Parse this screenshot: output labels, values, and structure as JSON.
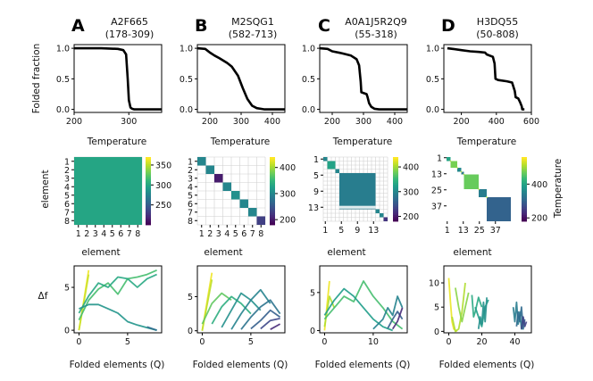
{
  "colors": {
    "viridis": [
      "#440154",
      "#482878",
      "#3e4989",
      "#31688e",
      "#26828e",
      "#1f9e89",
      "#35b779",
      "#6ece58",
      "#b5de2b",
      "#fde725"
    ],
    "curve": "#000000",
    "grid": "#d0d0d0"
  },
  "chart_data": [
    {
      "type": "line",
      "letter": "A",
      "title": "A2F665",
      "subtitle": "(178-309)",
      "xlabel": "Temperature",
      "ylabel": "Folded fraction",
      "xlim": [
        200,
        360
      ],
      "ylim": [
        0,
        1
      ],
      "xticks": [
        200,
        300
      ],
      "yticks": [
        0.0,
        0.5,
        1.0
      ],
      "ytick_labels": [
        "0.0",
        "0.5",
        "1.0"
      ],
      "series": [
        {
          "name": "folded fraction",
          "x": [
            200,
            250,
            280,
            290,
            295,
            298,
            300,
            303,
            306,
            310,
            330,
            360
          ],
          "y": [
            1.0,
            1.0,
            0.99,
            0.97,
            0.9,
            0.5,
            0.15,
            0.03,
            0.01,
            0.0,
            0.0,
            0.0
          ]
        }
      ]
    },
    {
      "type": "line",
      "letter": "B",
      "title": "M2SQG1",
      "subtitle": "(582-713)",
      "xlabel": "Temperature",
      "ylabel": "",
      "xlim": [
        160,
        440
      ],
      "ylim": [
        0,
        1
      ],
      "xticks": [
        200,
        300,
        400
      ],
      "yticks": [
        0.0,
        0.5,
        1.0
      ],
      "ytick_labels": [
        "0.0",
        "0.5",
        "1.0"
      ],
      "series": [
        {
          "name": "folded fraction",
          "x": [
            160,
            185,
            200,
            215,
            230,
            255,
            270,
            290,
            305,
            320,
            335,
            350,
            375,
            440
          ],
          "y": [
            1.0,
            0.99,
            0.93,
            0.88,
            0.84,
            0.76,
            0.7,
            0.55,
            0.35,
            0.17,
            0.06,
            0.02,
            0.0,
            0.0
          ]
        }
      ]
    },
    {
      "type": "line",
      "letter": "C",
      "title": "A0A1J5R2Q9",
      "subtitle": "(55-318)",
      "xlabel": "Temperature",
      "ylabel": "",
      "xlim": [
        160,
        440
      ],
      "ylim": [
        0,
        1
      ],
      "xticks": [
        200,
        300,
        400
      ],
      "yticks": [
        0.0,
        0.5,
        1.0
      ],
      "ytick_labels": [
        "0.0",
        "0.5",
        "1.0"
      ],
      "series": [
        {
          "name": "folded fraction",
          "x": [
            160,
            185,
            200,
            230,
            260,
            278,
            286,
            291,
            293,
            310,
            313,
            318,
            325,
            335,
            350,
            440
          ],
          "y": [
            1.0,
            0.99,
            0.95,
            0.92,
            0.88,
            0.82,
            0.72,
            0.45,
            0.28,
            0.25,
            0.2,
            0.1,
            0.04,
            0.01,
            0.0,
            0.0
          ]
        }
      ]
    },
    {
      "type": "line",
      "letter": "D",
      "title": "H3DQ55",
      "subtitle": "(50-808)",
      "xlabel": "Temperature",
      "ylabel": "",
      "xlim": [
        100,
        600
      ],
      "ylim": [
        0,
        1
      ],
      "xticks": [
        200,
        400,
        600
      ],
      "yticks": [
        0.0,
        0.5,
        1.0
      ],
      "ytick_labels": [
        "0.0",
        "0.5",
        "1.0"
      ],
      "series": [
        {
          "name": "folded fraction",
          "x": [
            120,
            150,
            200,
            250,
            300,
            335,
            345,
            380,
            390,
            395,
            410,
            460,
            490,
            505,
            510,
            525,
            535,
            545,
            548,
            560
          ],
          "y": [
            1.0,
            0.99,
            0.97,
            0.95,
            0.94,
            0.93,
            0.9,
            0.86,
            0.75,
            0.5,
            0.48,
            0.46,
            0.44,
            0.3,
            0.2,
            0.18,
            0.12,
            0.05,
            0.0,
            0.0
          ]
        }
      ]
    },
    {
      "type": "heatmap",
      "xlabel": "element",
      "ylabel": "element",
      "n": 8,
      "tick_labels": [
        "1",
        "2",
        "3",
        "4",
        "5",
        "6",
        "7",
        "8"
      ],
      "colorbar": {
        "range": [
          200,
          370
        ],
        "ticks": [
          250,
          300,
          350
        ],
        "label": ""
      },
      "blocks": [
        {
          "from": 1,
          "to": 8,
          "value": 300
        }
      ]
    },
    {
      "type": "heatmap",
      "xlabel": "element",
      "ylabel": "",
      "n": 8,
      "tick_labels": [
        "1",
        "2",
        "3",
        "4",
        "5",
        "6",
        "7",
        "8"
      ],
      "colorbar": {
        "range": [
          180,
          440
        ],
        "ticks": [
          200,
          300,
          400
        ],
        "label": ""
      },
      "blocks": [
        {
          "from": 1,
          "to": 1,
          "value": 300
        },
        {
          "from": 2,
          "to": 2,
          "value": 300
        },
        {
          "from": 3,
          "to": 3,
          "value": 200
        },
        {
          "from": 4,
          "to": 4,
          "value": 300
        },
        {
          "from": 5,
          "to": 5,
          "value": 310
        },
        {
          "from": 6,
          "to": 6,
          "value": 300
        },
        {
          "from": 7,
          "to": 7,
          "value": 300
        },
        {
          "from": 8,
          "to": 8,
          "value": 230
        }
      ]
    },
    {
      "type": "heatmap",
      "xlabel": "element",
      "ylabel": "",
      "n": 16,
      "tick_labels": [
        "1",
        "5",
        "9",
        "13"
      ],
      "tick_positions": [
        1,
        5,
        9,
        13
      ],
      "colorbar": {
        "range": [
          180,
          440
        ],
        "ticks": [
          200,
          300,
          400
        ],
        "label": ""
      },
      "blocks": [
        {
          "from": 1,
          "to": 1,
          "value": 300
        },
        {
          "from": 2,
          "to": 3,
          "value": 330
        },
        {
          "from": 4,
          "to": 4,
          "value": 300
        },
        {
          "from": 5,
          "to": 13,
          "value": 290
        },
        {
          "from": 14,
          "to": 14,
          "value": 300
        },
        {
          "from": 15,
          "to": 15,
          "value": 300
        },
        {
          "from": 16,
          "to": 16,
          "value": 220
        }
      ]
    },
    {
      "type": "heatmap",
      "xlabel": "element",
      "ylabel": "",
      "n": 48,
      "tick_labels": [
        "1",
        "13",
        "25",
        "37"
      ],
      "tick_positions": [
        1,
        13,
        25,
        37
      ],
      "colorbar": {
        "range": [
          180,
          560
        ],
        "ticks": [
          200,
          400
        ],
        "label": "Temperature"
      },
      "blocks": [
        {
          "from": 1,
          "to": 3,
          "value": 400
        },
        {
          "from": 4,
          "to": 8,
          "value": 480
        },
        {
          "from": 9,
          "to": 11,
          "value": 360
        },
        {
          "from": 12,
          "to": 13,
          "value": 330
        },
        {
          "from": 14,
          "to": 24,
          "value": 470
        },
        {
          "from": 25,
          "to": 30,
          "value": 340
        },
        {
          "from": 31,
          "to": 48,
          "value": 300
        }
      ]
    },
    {
      "type": "line",
      "xlabel": "Folded elements (Q)",
      "ylabel": "Δf",
      "xlim": [
        -0.5,
        8.5
      ],
      "ylim": [
        -0.3,
        7.5
      ],
      "xticks": [
        0,
        5
      ],
      "yticks": [
        0,
        5
      ],
      "series": [
        {
          "t": 0.98,
          "x": [
            0,
            0.5,
            1
          ],
          "y": [
            0,
            3.5,
            7
          ]
        },
        {
          "t": 0.92,
          "x": [
            0,
            0.5,
            1
          ],
          "y": [
            0,
            3.2,
            6.5
          ]
        },
        {
          "t": 0.7,
          "x": [
            0,
            1,
            2,
            3,
            4,
            5,
            6,
            7,
            8
          ],
          "y": [
            1.2,
            3.5,
            4.8,
            5.5,
            4.2,
            6.0,
            6.2,
            6.5,
            7.0
          ]
        },
        {
          "t": 0.6,
          "x": [
            0,
            1,
            2,
            3,
            4,
            5,
            6,
            7,
            8
          ],
          "y": [
            2.0,
            4.0,
            5.5,
            5.0,
            6.2,
            6.0,
            5.0,
            6.0,
            6.5
          ]
        },
        {
          "t": 0.52,
          "x": [
            0,
            1,
            2,
            3,
            4,
            5,
            6,
            7,
            8
          ],
          "y": [
            2.5,
            3.0,
            3.0,
            2.5,
            2.0,
            1.0,
            0.6,
            0.3,
            0.0
          ]
        },
        {
          "t": 0.35,
          "x": [
            7,
            8
          ],
          "y": [
            0.4,
            0
          ]
        }
      ]
    },
    {
      "type": "line",
      "xlabel": "Folded elements (Q)",
      "ylabel": "",
      "xlim": [
        -0.5,
        8.5
      ],
      "ylim": [
        -0.3,
        9.5
      ],
      "xticks": [
        0,
        5
      ],
      "yticks": [
        0,
        5
      ],
      "series": [
        {
          "t": 0.98,
          "x": [
            0,
            1
          ],
          "y": [
            0,
            8.5
          ]
        },
        {
          "t": 0.9,
          "x": [
            0,
            1
          ],
          "y": [
            0,
            7.5
          ]
        },
        {
          "t": 0.75,
          "x": [
            0,
            1,
            2,
            3
          ],
          "y": [
            1.0,
            4.0,
            5.5,
            4.5
          ]
        },
        {
          "t": 0.62,
          "x": [
            1,
            2,
            3,
            4,
            5
          ],
          "y": [
            1.0,
            3.5,
            5.0,
            4.0,
            2.5
          ]
        },
        {
          "t": 0.5,
          "x": [
            2,
            3,
            4,
            5,
            6
          ],
          "y": [
            0.5,
            3.0,
            5.5,
            4.5,
            3.0
          ]
        },
        {
          "t": 0.45,
          "x": [
            3,
            4,
            5,
            6,
            7
          ],
          "y": [
            0.2,
            2.5,
            4.5,
            6.0,
            4.0
          ]
        },
        {
          "t": 0.38,
          "x": [
            4,
            5,
            6,
            7,
            8
          ],
          "y": [
            0.2,
            2.0,
            3.5,
            4.5,
            2.5
          ]
        },
        {
          "t": 0.3,
          "x": [
            5,
            6,
            7,
            8
          ],
          "y": [
            0.3,
            1.5,
            3.0,
            2.0
          ]
        },
        {
          "t": 0.22,
          "x": [
            6,
            7,
            8
          ],
          "y": [
            0.3,
            1.5,
            1.8
          ]
        },
        {
          "t": 0.12,
          "x": [
            7,
            8
          ],
          "y": [
            0.2,
            1.0
          ]
        }
      ]
    },
    {
      "type": "line",
      "xlabel": "Folded elements (Q)",
      "ylabel": "",
      "xlim": [
        -1,
        17
      ],
      "ylim": [
        -0.3,
        8.5
      ],
      "xticks": [
        0,
        10
      ],
      "yticks": [
        0,
        5
      ],
      "series": [
        {
          "t": 0.98,
          "x": [
            0,
            1
          ],
          "y": [
            0,
            6.5
          ]
        },
        {
          "t": 0.88,
          "x": [
            0,
            1,
            2
          ],
          "y": [
            0.5,
            4.5,
            3.0
          ]
        },
        {
          "t": 0.7,
          "x": [
            0,
            2,
            4,
            6,
            8,
            10,
            12,
            14,
            16
          ],
          "y": [
            1.5,
            3.0,
            4.5,
            3.8,
            6.5,
            4.5,
            3.0,
            1.2,
            0.2
          ]
        },
        {
          "t": 0.55,
          "x": [
            0,
            2,
            4,
            6,
            8,
            10,
            12,
            14
          ],
          "y": [
            2.0,
            4.0,
            5.5,
            4.5,
            3.0,
            1.5,
            0.5,
            0.0
          ]
        },
        {
          "t": 0.45,
          "x": [
            10,
            12,
            13,
            14,
            15,
            16
          ],
          "y": [
            0.2,
            1.5,
            3.0,
            2.0,
            4.5,
            3.0
          ]
        },
        {
          "t": 0.3,
          "x": [
            13,
            14,
            15,
            16
          ],
          "y": [
            0.3,
            1.5,
            2.5,
            1.5
          ]
        },
        {
          "t": 0.12,
          "x": [
            14,
            15,
            16
          ],
          "y": [
            0.2,
            1.2,
            3.0
          ]
        }
      ]
    },
    {
      "type": "line",
      "xlabel": "Folded elements (Q)",
      "ylabel": "",
      "xlim": [
        -3,
        50
      ],
      "ylim": [
        -0.3,
        13.5
      ],
      "xticks": [
        0,
        20,
        40
      ],
      "yticks": [
        0,
        5,
        10
      ],
      "series": [
        {
          "t": 0.97,
          "x": [
            0,
            1,
            2,
            3,
            5
          ],
          "y": [
            11,
            6,
            2,
            0.5,
            0
          ]
        },
        {
          "t": 0.88,
          "x": [
            2,
            4,
            6,
            8,
            10
          ],
          "y": [
            3,
            0,
            0.5,
            4,
            10
          ]
        },
        {
          "t": 0.82,
          "x": [
            4,
            6,
            8,
            10,
            12
          ],
          "y": [
            9,
            5,
            2,
            5,
            8
          ]
        },
        {
          "t": 0.6,
          "x": [
            14,
            15,
            16,
            18,
            20
          ],
          "y": [
            7.5,
            3,
            4,
            7,
            5
          ]
        },
        {
          "t": 0.56,
          "x": [
            16,
            18,
            20,
            22,
            24
          ],
          "y": [
            5,
            3,
            1,
            5,
            6.5
          ]
        },
        {
          "t": 0.5,
          "x": [
            18,
            19,
            20,
            21,
            22,
            23
          ],
          "y": [
            0.5,
            3,
            1.5,
            6,
            2,
            7
          ]
        },
        {
          "t": 0.42,
          "x": [
            39,
            40,
            41,
            42,
            43,
            44,
            45
          ],
          "y": [
            5,
            2,
            6,
            1.5,
            4,
            0.5,
            3
          ]
        },
        {
          "t": 0.34,
          "x": [
            41,
            42,
            43,
            44,
            45,
            46
          ],
          "y": [
            1,
            4,
            2,
            5,
            0.5,
            2.5
          ]
        },
        {
          "t": 0.2,
          "x": [
            44,
            45,
            46,
            47
          ],
          "y": [
            0.5,
            3,
            1,
            2
          ]
        }
      ]
    }
  ]
}
